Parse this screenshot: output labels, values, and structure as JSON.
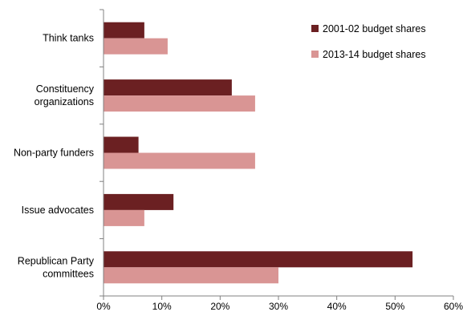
{
  "chart_data": {
    "type": "bar",
    "orientation": "horizontal",
    "categories": [
      [
        "Think tanks"
      ],
      [
        "Constituency",
        "organizations"
      ],
      [
        "Non-party funders"
      ],
      [
        "Issue advocates"
      ],
      [
        "Republican Party",
        "committees"
      ]
    ],
    "series": [
      {
        "name": "2001-02 budget shares",
        "color": "#6b2022",
        "values": [
          7,
          22,
          6,
          12,
          53
        ]
      },
      {
        "name": "2013-14 budget shares",
        "color": "#d99594",
        "values": [
          11,
          26,
          26,
          7,
          30
        ]
      }
    ],
    "xlim": [
      0,
      60
    ],
    "xticks": [
      0,
      10,
      20,
      30,
      40,
      50,
      60
    ],
    "tick_format": "{v}%",
    "grid": false,
    "legend_position": "top-right"
  }
}
